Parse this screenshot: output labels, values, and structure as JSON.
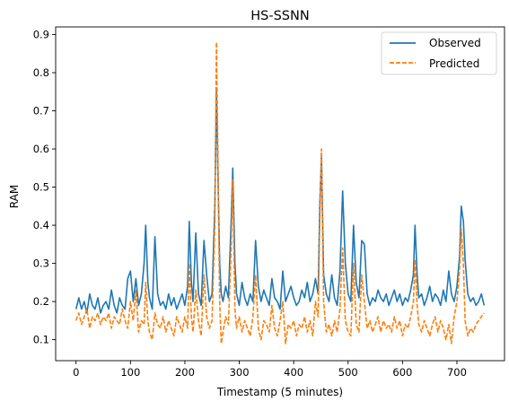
{
  "chart_data": {
    "type": "line",
    "title": "HS-SSNN",
    "xlabel": "Timestamp (5 minutes)",
    "ylabel": "RAM",
    "xlim": [
      -37.5,
      787.5
    ],
    "ylim": [
      0.045,
      0.92
    ],
    "x_ticks": [
      0,
      100,
      200,
      300,
      400,
      500,
      600,
      700
    ],
    "y_ticks": [
      0.1,
      0.2,
      0.3,
      0.4,
      0.5,
      0.6,
      0.7,
      0.8,
      0.9
    ],
    "x_tick_labels": [
      "0",
      "100",
      "200",
      "300",
      "400",
      "500",
      "600",
      "700"
    ],
    "y_tick_labels": [
      "0.1",
      "0.2",
      "0.3",
      "0.4",
      "0.5",
      "0.6",
      "0.7",
      "0.8",
      "0.9"
    ],
    "grid": false,
    "legend_position": "top-right",
    "series": [
      {
        "name": "Observed",
        "color": "#1f77b4",
        "style": "solid",
        "x": [
          0,
          5,
          10,
          15,
          20,
          25,
          30,
          35,
          40,
          45,
          50,
          55,
          60,
          65,
          70,
          75,
          80,
          85,
          90,
          95,
          100,
          105,
          110,
          115,
          120,
          125,
          128,
          132,
          135,
          140,
          145,
          150,
          155,
          160,
          165,
          170,
          175,
          180,
          185,
          190,
          195,
          200,
          205,
          208,
          212,
          215,
          220,
          225,
          230,
          235,
          240,
          245,
          250,
          255,
          258,
          261,
          264,
          267,
          270,
          275,
          280,
          285,
          288,
          292,
          295,
          300,
          305,
          310,
          315,
          320,
          325,
          330,
          335,
          340,
          345,
          350,
          355,
          360,
          365,
          370,
          375,
          380,
          385,
          390,
          395,
          400,
          405,
          410,
          415,
          420,
          425,
          430,
          435,
          440,
          445,
          448,
          451,
          455,
          460,
          465,
          470,
          475,
          480,
          485,
          490,
          495,
          500,
          505,
          510,
          515,
          520,
          525,
          530,
          535,
          540,
          545,
          550,
          555,
          560,
          565,
          570,
          575,
          580,
          585,
          590,
          595,
          600,
          605,
          610,
          615,
          620,
          623,
          627,
          630,
          635,
          640,
          645,
          650,
          655,
          660,
          665,
          670,
          675,
          680,
          685,
          690,
          695,
          700,
          705,
          708,
          712,
          715,
          720,
          725,
          730,
          735,
          740,
          745,
          750
        ],
        "values": [
          0.18,
          0.21,
          0.18,
          0.2,
          0.17,
          0.22,
          0.19,
          0.18,
          0.21,
          0.17,
          0.19,
          0.2,
          0.18,
          0.23,
          0.19,
          0.17,
          0.21,
          0.19,
          0.18,
          0.26,
          0.28,
          0.2,
          0.26,
          0.19,
          0.22,
          0.3,
          0.4,
          0.25,
          0.21,
          0.18,
          0.37,
          0.22,
          0.19,
          0.2,
          0.18,
          0.22,
          0.19,
          0.21,
          0.18,
          0.2,
          0.22,
          0.19,
          0.24,
          0.41,
          0.25,
          0.2,
          0.38,
          0.22,
          0.19,
          0.36,
          0.27,
          0.2,
          0.22,
          0.45,
          0.75,
          0.52,
          0.3,
          0.22,
          0.2,
          0.24,
          0.21,
          0.41,
          0.55,
          0.3,
          0.22,
          0.19,
          0.25,
          0.21,
          0.19,
          0.22,
          0.2,
          0.36,
          0.24,
          0.2,
          0.23,
          0.21,
          0.19,
          0.26,
          0.21,
          0.2,
          0.18,
          0.28,
          0.2,
          0.22,
          0.24,
          0.21,
          0.19,
          0.2,
          0.23,
          0.21,
          0.25,
          0.2,
          0.22,
          0.26,
          0.22,
          0.45,
          0.58,
          0.27,
          0.22,
          0.2,
          0.27,
          0.21,
          0.19,
          0.28,
          0.49,
          0.3,
          0.22,
          0.2,
          0.4,
          0.25,
          0.21,
          0.36,
          0.35,
          0.22,
          0.19,
          0.21,
          0.2,
          0.23,
          0.21,
          0.2,
          0.22,
          0.19,
          0.21,
          0.23,
          0.2,
          0.22,
          0.19,
          0.21,
          0.2,
          0.23,
          0.27,
          0.4,
          0.27,
          0.21,
          0.22,
          0.19,
          0.21,
          0.24,
          0.2,
          0.22,
          0.21,
          0.19,
          0.23,
          0.2,
          0.28,
          0.22,
          0.2,
          0.24,
          0.32,
          0.45,
          0.41,
          0.31,
          0.22,
          0.2,
          0.21,
          0.19,
          0.2,
          0.22,
          0.19
        ]
      },
      {
        "name": "Predicted",
        "color": "#ff7f0e",
        "style": "dashed",
        "x": [
          0,
          5,
          10,
          15,
          20,
          25,
          30,
          35,
          40,
          45,
          50,
          55,
          60,
          65,
          70,
          75,
          80,
          85,
          90,
          95,
          100,
          105,
          110,
          115,
          120,
          125,
          128,
          132,
          135,
          140,
          145,
          150,
          155,
          160,
          165,
          170,
          175,
          180,
          185,
          190,
          195,
          200,
          205,
          208,
          212,
          215,
          220,
          225,
          230,
          235,
          240,
          245,
          250,
          255,
          258,
          261,
          264,
          267,
          270,
          275,
          280,
          285,
          288,
          292,
          295,
          300,
          305,
          310,
          315,
          320,
          325,
          330,
          335,
          340,
          345,
          350,
          355,
          360,
          365,
          370,
          375,
          380,
          385,
          390,
          395,
          400,
          405,
          410,
          415,
          420,
          425,
          430,
          435,
          440,
          445,
          448,
          451,
          455,
          460,
          465,
          470,
          475,
          480,
          485,
          490,
          495,
          500,
          505,
          510,
          515,
          520,
          525,
          530,
          535,
          540,
          545,
          550,
          555,
          560,
          565,
          570,
          575,
          580,
          585,
          590,
          595,
          600,
          605,
          610,
          615,
          620,
          623,
          627,
          630,
          635,
          640,
          645,
          650,
          655,
          660,
          665,
          670,
          675,
          680,
          685,
          690,
          695,
          700,
          705,
          708,
          712,
          715,
          720,
          725,
          730,
          735,
          740,
          745,
          750
        ],
        "values": [
          0.15,
          0.17,
          0.14,
          0.16,
          0.18,
          0.13,
          0.16,
          0.15,
          0.17,
          0.14,
          0.16,
          0.15,
          0.17,
          0.13,
          0.16,
          0.15,
          0.14,
          0.18,
          0.15,
          0.13,
          0.2,
          0.15,
          0.23,
          0.12,
          0.15,
          0.14,
          0.25,
          0.15,
          0.12,
          0.1,
          0.17,
          0.14,
          0.13,
          0.16,
          0.12,
          0.15,
          0.13,
          0.11,
          0.16,
          0.14,
          0.12,
          0.16,
          0.13,
          0.3,
          0.16,
          0.12,
          0.23,
          0.15,
          0.11,
          0.27,
          0.16,
          0.13,
          0.15,
          0.4,
          0.88,
          0.55,
          0.2,
          0.09,
          0.12,
          0.16,
          0.14,
          0.34,
          0.52,
          0.18,
          0.13,
          0.16,
          0.12,
          0.15,
          0.13,
          0.11,
          0.16,
          0.27,
          0.13,
          0.1,
          0.15,
          0.14,
          0.12,
          0.19,
          0.13,
          0.11,
          0.15,
          0.2,
          0.09,
          0.14,
          0.13,
          0.15,
          0.11,
          0.14,
          0.13,
          0.16,
          0.12,
          0.15,
          0.11,
          0.2,
          0.16,
          0.41,
          0.6,
          0.2,
          0.12,
          0.14,
          0.11,
          0.15,
          0.12,
          0.18,
          0.34,
          0.15,
          0.12,
          0.11,
          0.3,
          0.14,
          0.12,
          0.27,
          0.2,
          0.13,
          0.15,
          0.12,
          0.14,
          0.16,
          0.12,
          0.15,
          0.13,
          0.14,
          0.12,
          0.16,
          0.13,
          0.15,
          0.11,
          0.14,
          0.13,
          0.16,
          0.2,
          0.31,
          0.19,
          0.14,
          0.12,
          0.15,
          0.13,
          0.11,
          0.14,
          0.16,
          0.12,
          0.15,
          0.13,
          0.1,
          0.14,
          0.09,
          0.16,
          0.2,
          0.29,
          0.39,
          0.3,
          0.15,
          0.11,
          0.13,
          0.12,
          0.14,
          0.15,
          0.16,
          0.17
        ]
      }
    ]
  }
}
